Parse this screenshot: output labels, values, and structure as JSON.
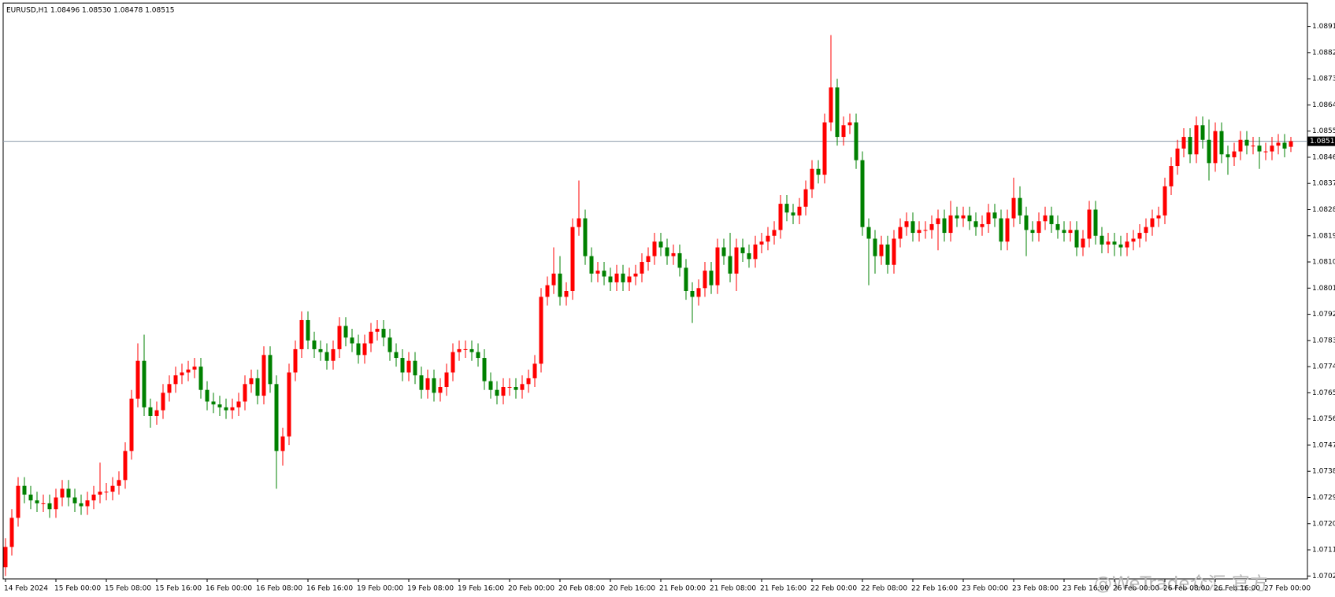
{
  "chart_data": {
    "type": "candlestick",
    "title": "EURUSD,H1  1.08496 1.08530 1.08478 1.08515",
    "watermark": "@WeTrade众汇 官方",
    "up_color": "#ff0000",
    "down_color": "#008000",
    "ylim": [
      1.0701,
      1.0899
    ],
    "yticks": [
      {
        "value": 1.0891,
        "label": "1.08910"
      },
      {
        "value": 1.0882,
        "label": "1.08820"
      },
      {
        "value": 1.0873,
        "label": "1.08730"
      },
      {
        "value": 1.0864,
        "label": "1.08640"
      },
      {
        "value": 1.0855,
        "label": "1.08550"
      },
      {
        "value": 1.0846,
        "label": "1.08460"
      },
      {
        "value": 1.0837,
        "label": "1.08370"
      },
      {
        "value": 1.0828,
        "label": "1.08280"
      },
      {
        "value": 1.0819,
        "label": "1.08190"
      },
      {
        "value": 1.081,
        "label": "1.08100"
      },
      {
        "value": 1.0801,
        "label": "1.08010"
      },
      {
        "value": 1.0792,
        "label": "1.07920"
      },
      {
        "value": 1.0783,
        "label": "1.07830"
      },
      {
        "value": 1.0774,
        "label": "1.07740"
      },
      {
        "value": 1.0765,
        "label": "1.07650"
      },
      {
        "value": 1.0756,
        "label": "1.07560"
      },
      {
        "value": 1.0747,
        "label": "1.07470"
      },
      {
        "value": 1.0738,
        "label": "1.07380"
      },
      {
        "value": 1.0729,
        "label": "1.07290"
      },
      {
        "value": 1.072,
        "label": "1.07200"
      },
      {
        "value": 1.0711,
        "label": "1.07110"
      },
      {
        "value": 1.0702,
        "label": "1.07020"
      }
    ],
    "current_price": {
      "value": 1.08515,
      "label": "1.08515"
    },
    "xtick_labels": [
      "14 Feb 2024",
      "15 Feb 00:00",
      "15 Feb 08:00",
      "15 Feb 16:00",
      "16 Feb 00:00",
      "16 Feb 08:00",
      "16 Feb 16:00",
      "19 Feb 00:00",
      "19 Feb 08:00",
      "19 Feb 16:00",
      "20 Feb 00:00",
      "20 Feb 08:00",
      "20 Feb 16:00",
      "21 Feb 00:00",
      "21 Feb 08:00",
      "21 Feb 16:00",
      "22 Feb 00:00",
      "22 Feb 08:00",
      "22 Feb 16:00",
      "23 Feb 00:00",
      "23 Feb 08:00",
      "23 Feb 16:00",
      "26 Feb 00:00",
      "26 Feb 08:00",
      "26 Feb 16:00",
      "27 Feb 00:00"
    ],
    "candles": [
      [
        1.0705,
        1.0715,
        1.0702,
        1.0712
      ],
      [
        1.0712,
        1.0725,
        1.0709,
        1.0722
      ],
      [
        1.0722,
        1.0736,
        1.0719,
        1.0733
      ],
      [
        1.0733,
        1.0736,
        1.0727,
        1.073
      ],
      [
        1.073,
        1.0733,
        1.0725,
        1.0728
      ],
      [
        1.0728,
        1.0731,
        1.0724,
        1.0727
      ],
      [
        1.0727,
        1.073,
        1.0724,
        1.0727
      ],
      [
        1.0727,
        1.073,
        1.0722,
        1.0725
      ],
      [
        1.0725,
        1.0732,
        1.0722,
        1.0729
      ],
      [
        1.0729,
        1.0735,
        1.0726,
        1.0732
      ],
      [
        1.0732,
        1.0735,
        1.0726,
        1.0729
      ],
      [
        1.0729,
        1.0732,
        1.0724,
        1.0727
      ],
      [
        1.0727,
        1.073,
        1.0723,
        1.0726
      ],
      [
        1.0726,
        1.0731,
        1.0723,
        1.0728
      ],
      [
        1.0728,
        1.0733,
        1.0725,
        1.073
      ],
      [
        1.073,
        1.0741,
        1.0727,
        1.0731
      ],
      [
        1.0731,
        1.0734,
        1.0728,
        1.0731
      ],
      [
        1.0731,
        1.0736,
        1.0728,
        1.0733
      ],
      [
        1.0733,
        1.0738,
        1.073,
        1.0735
      ],
      [
        1.0735,
        1.0748,
        1.0732,
        1.0745
      ],
      [
        1.0745,
        1.0766,
        1.0742,
        1.0763
      ],
      [
        1.0763,
        1.0782,
        1.076,
        1.0776
      ],
      [
        1.0776,
        1.0785,
        1.0757,
        1.076
      ],
      [
        1.076,
        1.0763,
        1.0753,
        1.0757
      ],
      [
        1.0757,
        1.0762,
        1.0754,
        1.0759
      ],
      [
        1.0759,
        1.0768,
        1.0756,
        1.0765
      ],
      [
        1.0765,
        1.0771,
        1.0762,
        1.0768
      ],
      [
        1.0768,
        1.0774,
        1.0765,
        1.0771
      ],
      [
        1.0771,
        1.0775,
        1.0768,
        1.0772
      ],
      [
        1.0772,
        1.0776,
        1.0769,
        1.0773
      ],
      [
        1.0773,
        1.0777,
        1.077,
        1.0774
      ],
      [
        1.0774,
        1.0777,
        1.0763,
        1.0766
      ],
      [
        1.0766,
        1.0769,
        1.0759,
        1.0762
      ],
      [
        1.0762,
        1.0765,
        1.0758,
        1.0761
      ],
      [
        1.0761,
        1.0764,
        1.0757,
        1.076
      ],
      [
        1.076,
        1.0763,
        1.0756,
        1.0759
      ],
      [
        1.0759,
        1.0763,
        1.0756,
        1.076
      ],
      [
        1.076,
        1.0765,
        1.0757,
        1.0762
      ],
      [
        1.0762,
        1.0771,
        1.0759,
        1.0768
      ],
      [
        1.0768,
        1.0773,
        1.0765,
        1.077
      ],
      [
        1.077,
        1.0773,
        1.0761,
        1.0764
      ],
      [
        1.0764,
        1.0781,
        1.0761,
        1.0778
      ],
      [
        1.0778,
        1.0781,
        1.0765,
        1.0768
      ],
      [
        1.0768,
        1.0771,
        1.0732,
        1.0745
      ],
      [
        1.0745,
        1.0753,
        1.074,
        1.075
      ],
      [
        1.075,
        1.0775,
        1.0747,
        1.0772
      ],
      [
        1.0772,
        1.0783,
        1.0769,
        1.078
      ],
      [
        1.078,
        1.0793,
        1.0777,
        1.079
      ],
      [
        1.079,
        1.0793,
        1.078,
        1.0783
      ],
      [
        1.0783,
        1.0786,
        1.0777,
        1.078
      ],
      [
        1.078,
        1.0783,
        1.0776,
        1.0779
      ],
      [
        1.0779,
        1.0782,
        1.0773,
        1.0776
      ],
      [
        1.0776,
        1.0783,
        1.0773,
        1.078
      ],
      [
        1.078,
        1.0791,
        1.0777,
        1.0788
      ],
      [
        1.0788,
        1.0791,
        1.0781,
        1.0784
      ],
      [
        1.0784,
        1.0787,
        1.0779,
        1.0782
      ],
      [
        1.0782,
        1.0785,
        1.0775,
        1.0778
      ],
      [
        1.0778,
        1.0785,
        1.0775,
        1.0782
      ],
      [
        1.0782,
        1.0789,
        1.0779,
        1.0786
      ],
      [
        1.0786,
        1.079,
        1.0783,
        1.0787
      ],
      [
        1.0787,
        1.079,
        1.0781,
        1.0784
      ],
      [
        1.0784,
        1.0787,
        1.0776,
        1.0779
      ],
      [
        1.0779,
        1.0782,
        1.0774,
        1.0777
      ],
      [
        1.0777,
        1.078,
        1.0769,
        1.0772
      ],
      [
        1.0772,
        1.0779,
        1.0769,
        1.0776
      ],
      [
        1.0776,
        1.0779,
        1.0768,
        1.0771
      ],
      [
        1.0771,
        1.0774,
        1.0763,
        1.0766
      ],
      [
        1.0766,
        1.0773,
        1.0763,
        1.077
      ],
      [
        1.077,
        1.0773,
        1.0762,
        1.0765
      ],
      [
        1.0765,
        1.077,
        1.0762,
        1.0767
      ],
      [
        1.0767,
        1.0775,
        1.0764,
        1.0772
      ],
      [
        1.0772,
        1.0782,
        1.0769,
        1.0779
      ],
      [
        1.0779,
        1.0783,
        1.0776,
        1.078
      ],
      [
        1.078,
        1.0783,
        1.0777,
        1.078
      ],
      [
        1.078,
        1.0783,
        1.0776,
        1.0779
      ],
      [
        1.0779,
        1.0782,
        1.0774,
        1.0777
      ],
      [
        1.0777,
        1.078,
        1.0766,
        1.0769
      ],
      [
        1.0769,
        1.0772,
        1.0763,
        1.0766
      ],
      [
        1.0766,
        1.0769,
        1.0761,
        1.0764
      ],
      [
        1.0764,
        1.077,
        1.0761,
        1.0767
      ],
      [
        1.0767,
        1.077,
        1.0764,
        1.0767
      ],
      [
        1.0767,
        1.077,
        1.0763,
        1.0766
      ],
      [
        1.0766,
        1.0771,
        1.0763,
        1.0768
      ],
      [
        1.0768,
        1.0773,
        1.0765,
        1.077
      ],
      [
        1.077,
        1.0778,
        1.0767,
        1.0775
      ],
      [
        1.0775,
        1.0801,
        1.0772,
        1.0798
      ],
      [
        1.0798,
        1.0805,
        1.0795,
        1.0802
      ],
      [
        1.0802,
        1.0815,
        1.0799,
        1.0806
      ],
      [
        1.0806,
        1.0812,
        1.0795,
        1.0798
      ],
      [
        1.0798,
        1.0803,
        1.0795,
        1.08
      ],
      [
        1.08,
        1.0825,
        1.0797,
        1.0822
      ],
      [
        1.0822,
        1.0838,
        1.0819,
        1.0825
      ],
      [
        1.0825,
        1.0828,
        1.0809,
        1.0812
      ],
      [
        1.0812,
        1.0815,
        1.0803,
        1.0806
      ],
      [
        1.0806,
        1.081,
        1.0803,
        1.0807
      ],
      [
        1.0807,
        1.081,
        1.0802,
        1.0805
      ],
      [
        1.0805,
        1.0808,
        1.08,
        1.0803
      ],
      [
        1.0803,
        1.0809,
        1.08,
        1.0806
      ],
      [
        1.0806,
        1.0809,
        1.08,
        1.0803
      ],
      [
        1.0803,
        1.0808,
        1.08,
        1.0805
      ],
      [
        1.0805,
        1.0809,
        1.0802,
        1.0806
      ],
      [
        1.0806,
        1.0813,
        1.0803,
        1.081
      ],
      [
        1.081,
        1.0815,
        1.0807,
        1.0812
      ],
      [
        1.0812,
        1.082,
        1.0809,
        1.0817
      ],
      [
        1.0817,
        1.082,
        1.0812,
        1.0815
      ],
      [
        1.0815,
        1.0818,
        1.0809,
        1.0812
      ],
      [
        1.0812,
        1.0816,
        1.0809,
        1.0813
      ],
      [
        1.0813,
        1.0816,
        1.0805,
        1.0808
      ],
      [
        1.0808,
        1.0811,
        1.0797,
        1.08
      ],
      [
        1.08,
        1.0803,
        1.0789,
        1.0798
      ],
      [
        1.0798,
        1.0804,
        1.0795,
        1.0801
      ],
      [
        1.0801,
        1.081,
        1.0798,
        1.0807
      ],
      [
        1.0807,
        1.081,
        1.0799,
        1.0802
      ],
      [
        1.0802,
        1.0818,
        1.0799,
        1.0815
      ],
      [
        1.0815,
        1.0818,
        1.0809,
        1.0812
      ],
      [
        1.0812,
        1.082,
        1.0803,
        1.0806
      ],
      [
        1.0806,
        1.0818,
        1.08,
        1.0815
      ],
      [
        1.0815,
        1.0818,
        1.081,
        1.0813
      ],
      [
        1.0813,
        1.0816,
        1.0808,
        1.0811
      ],
      [
        1.0811,
        1.0819,
        1.0808,
        1.0816
      ],
      [
        1.0816,
        1.082,
        1.0813,
        1.0817
      ],
      [
        1.0817,
        1.0822,
        1.0814,
        1.0819
      ],
      [
        1.0819,
        1.0824,
        1.0816,
        1.0821
      ],
      [
        1.0821,
        1.0833,
        1.0818,
        1.083
      ],
      [
        1.083,
        1.0833,
        1.0824,
        1.0827
      ],
      [
        1.0827,
        1.083,
        1.0823,
        1.0826
      ],
      [
        1.0826,
        1.0832,
        1.0823,
        1.0829
      ],
      [
        1.0829,
        1.0838,
        1.0826,
        1.0835
      ],
      [
        1.0835,
        1.0845,
        1.0832,
        1.0842
      ],
      [
        1.0842,
        1.0845,
        1.0837,
        1.084
      ],
      [
        1.084,
        1.0861,
        1.0837,
        1.0858
      ],
      [
        1.0858,
        1.0888,
        1.0855,
        1.087
      ],
      [
        1.087,
        1.0873,
        1.085,
        1.0853
      ],
      [
        1.0853,
        1.086,
        1.085,
        1.0857
      ],
      [
        1.0857,
        1.0861,
        1.0854,
        1.0858
      ],
      [
        1.0858,
        1.0861,
        1.0842,
        1.0845
      ],
      [
        1.0845,
        1.0848,
        1.0819,
        1.0822
      ],
      [
        1.0822,
        1.0825,
        1.0802,
        1.0818
      ],
      [
        1.0818,
        1.0821,
        1.0806,
        1.0812
      ],
      [
        1.0812,
        1.0819,
        1.0809,
        1.0816
      ],
      [
        1.0816,
        1.0819,
        1.0806,
        1.0809
      ],
      [
        1.0809,
        1.0821,
        1.0806,
        1.0818
      ],
      [
        1.0818,
        1.0825,
        1.0815,
        1.0822
      ],
      [
        1.0822,
        1.0827,
        1.0819,
        1.0824
      ],
      [
        1.0824,
        1.0827,
        1.0817,
        1.082
      ],
      [
        1.082,
        1.0824,
        1.0817,
        1.0821
      ],
      [
        1.0821,
        1.0824,
        1.0818,
        1.0821
      ],
      [
        1.0821,
        1.0826,
        1.0818,
        1.0823
      ],
      [
        1.0823,
        1.0828,
        1.0814,
        1.0825
      ],
      [
        1.0825,
        1.0828,
        1.0817,
        1.082
      ],
      [
        1.082,
        1.0831,
        1.0817,
        1.0826
      ],
      [
        1.0826,
        1.0829,
        1.0822,
        1.0825
      ],
      [
        1.0825,
        1.0829,
        1.0822,
        1.0826
      ],
      [
        1.0826,
        1.0829,
        1.0821,
        1.0824
      ],
      [
        1.0824,
        1.0827,
        1.0819,
        1.0822
      ],
      [
        1.0822,
        1.0826,
        1.0819,
        1.0823
      ],
      [
        1.0823,
        1.083,
        1.082,
        1.0827
      ],
      [
        1.0827,
        1.083,
        1.0822,
        1.0825
      ],
      [
        1.0825,
        1.0828,
        1.0814,
        1.0817
      ],
      [
        1.0817,
        1.0828,
        1.0814,
        1.0825
      ],
      [
        1.0825,
        1.0839,
        1.0822,
        1.0832
      ],
      [
        1.0832,
        1.0836,
        1.0823,
        1.0826
      ],
      [
        1.0826,
        1.0829,
        1.0812,
        1.0821
      ],
      [
        1.0821,
        1.0824,
        1.0817,
        1.082
      ],
      [
        1.082,
        1.0827,
        1.0817,
        1.0824
      ],
      [
        1.0824,
        1.0829,
        1.0821,
        1.0826
      ],
      [
        1.0826,
        1.0829,
        1.082,
        1.0823
      ],
      [
        1.0823,
        1.0826,
        1.0818,
        1.0821
      ],
      [
        1.0821,
        1.0824,
        1.0817,
        1.082
      ],
      [
        1.082,
        1.0824,
        1.0817,
        1.0821
      ],
      [
        1.0821,
        1.0824,
        1.0812,
        1.0815
      ],
      [
        1.0815,
        1.0821,
        1.0812,
        1.0818
      ],
      [
        1.0818,
        1.0831,
        1.0815,
        1.0828
      ],
      [
        1.0828,
        1.0831,
        1.0816,
        1.0819
      ],
      [
        1.0819,
        1.0822,
        1.0813,
        1.0816
      ],
      [
        1.0816,
        1.082,
        1.0813,
        1.0817
      ],
      [
        1.0817,
        1.082,
        1.0812,
        1.0816
      ],
      [
        1.0816,
        1.0819,
        1.0812,
        1.0815
      ],
      [
        1.0815,
        1.082,
        1.0812,
        1.0817
      ],
      [
        1.0817,
        1.0821,
        1.0814,
        1.0818
      ],
      [
        1.0818,
        1.0823,
        1.0815,
        1.082
      ],
      [
        1.082,
        1.0825,
        1.0817,
        1.0822
      ],
      [
        1.0822,
        1.0828,
        1.0819,
        1.0825
      ],
      [
        1.0825,
        1.0829,
        1.0822,
        1.0826
      ],
      [
        1.0826,
        1.0839,
        1.0823,
        1.0836
      ],
      [
        1.0836,
        1.0846,
        1.0833,
        1.0843
      ],
      [
        1.0843,
        1.0852,
        1.084,
        1.0849
      ],
      [
        1.0849,
        1.0856,
        1.0846,
        1.0853
      ],
      [
        1.0853,
        1.0856,
        1.0844,
        1.0847
      ],
      [
        1.0847,
        1.086,
        1.0844,
        1.0857
      ],
      [
        1.0857,
        1.086,
        1.0849,
        1.0852
      ],
      [
        1.0852,
        1.0859,
        1.0838,
        1.0844
      ],
      [
        1.0844,
        1.0858,
        1.0841,
        1.0855
      ],
      [
        1.0855,
        1.0858,
        1.0844,
        1.0847
      ],
      [
        1.0847,
        1.085,
        1.084,
        1.0846
      ],
      [
        1.0846,
        1.0851,
        1.0843,
        1.0848
      ],
      [
        1.0848,
        1.0855,
        1.0845,
        1.0852
      ],
      [
        1.0852,
        1.0855,
        1.0847,
        1.085
      ],
      [
        1.085,
        1.0853,
        1.0847,
        1.085
      ],
      [
        1.085,
        1.0853,
        1.0842,
        1.0848
      ],
      [
        1.0848,
        1.0851,
        1.0845,
        1.0848
      ],
      [
        1.0848,
        1.0853,
        1.0845,
        1.085
      ],
      [
        1.085,
        1.0854,
        1.0847,
        1.0851
      ],
      [
        1.0851,
        1.0854,
        1.0846,
        1.0849
      ],
      [
        1.08496,
        1.0853,
        1.08478,
        1.08515
      ]
    ]
  }
}
